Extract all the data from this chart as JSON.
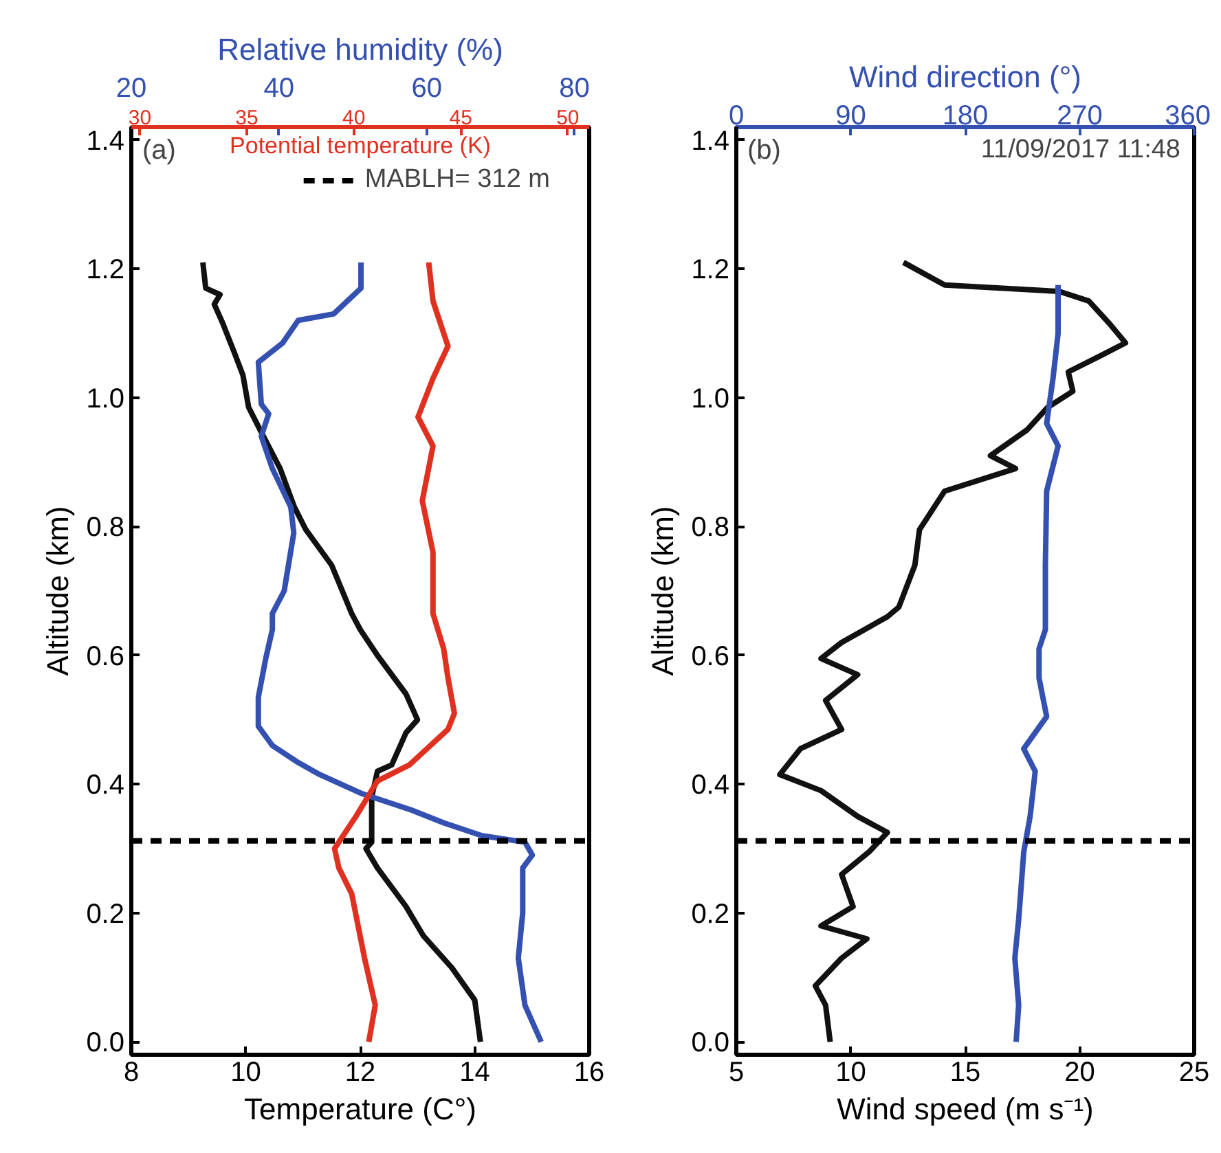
{
  "chart_data": [
    {
      "type": "line",
      "xlabel": "Temperature (C°)",
      "ylabel": "Altitude (km)",
      "x2label": "Relative humidity (%)",
      "xlim": [
        8,
        16
      ],
      "xticks": [
        8,
        10,
        12,
        14,
        16
      ],
      "x2lim": [
        20,
        82
      ],
      "x2ticks": [
        20,
        40,
        60,
        80
      ],
      "ylim": [
        -0.02,
        1.42
      ],
      "yticks": [
        {
          "value": 0,
          "label": "0.0"
        },
        {
          "value": 0.2,
          "label": "0.2"
        },
        {
          "value": 0.4,
          "label": "0.4"
        },
        {
          "value": 0.6,
          "label": "0.6"
        },
        {
          "value": 0.8,
          "label": "0.8"
        },
        {
          "value": 1.0,
          "label": "1.0"
        },
        {
          "value": 1.2,
          "label": "1.2"
        },
        {
          "value": 1.4,
          "label": "1.4"
        }
      ],
      "grid": false,
      "legend": "top right",
      "line_style": "solid",
      "annotations": [
        "(a)"
      ],
      "ref_lines": [
        {
          "axis": "y",
          "value": 0.312,
          "label": "MABLH= 312 m",
          "color": "#000000",
          "line_style": "dashed"
        }
      ],
      "series": [
        {
          "color": "#111111",
          "x": [
            14.1,
            14.0,
            13.6,
            13.1,
            12.8,
            12.3,
            12.1,
            12.2,
            12.2,
            12.3,
            12.55,
            12.8,
            13.0,
            12.8,
            12.3,
            12.0,
            11.85,
            11.5,
            11.05,
            10.85,
            10.6,
            10.25,
            10.05,
            9.95,
            9.8,
            9.6,
            9.45,
            9.55,
            9.3,
            9.25
          ],
          "values": [
            0.0,
            0.065,
            0.115,
            0.165,
            0.21,
            0.27,
            0.3,
            0.31,
            0.38,
            0.42,
            0.43,
            0.48,
            0.5,
            0.54,
            0.6,
            0.64,
            0.665,
            0.74,
            0.795,
            0.83,
            0.89,
            0.95,
            0.985,
            1.035,
            1.07,
            1.115,
            1.145,
            1.16,
            1.17,
            1.21
          ]
        },
        {
          "color": "#3450b0",
          "axis": "x2",
          "x": [
            75.5,
            73.3,
            72.4,
            73.0,
            73.0,
            74.3,
            73.3,
            67.5,
            62.3,
            57.9,
            51.3,
            45.5,
            42.4,
            39.1,
            37.2,
            37.2,
            38.2,
            39.1,
            39.1,
            40.7,
            42.0,
            41.6,
            39.1,
            37.6,
            38.6,
            37.6,
            37.2,
            40.5,
            42.6,
            47.4,
            51.1,
            51.1
          ],
          "values": [
            0.0,
            0.057,
            0.13,
            0.2,
            0.27,
            0.29,
            0.31,
            0.32,
            0.34,
            0.36,
            0.385,
            0.415,
            0.435,
            0.46,
            0.49,
            0.535,
            0.595,
            0.64,
            0.665,
            0.7,
            0.79,
            0.83,
            0.89,
            0.94,
            0.975,
            0.99,
            1.055,
            1.085,
            1.12,
            1.13,
            1.17,
            1.21
          ]
        }
      ]
    },
    {
      "type": "line",
      "xlabel": "Potential temperature (K)",
      "xlim": [
        29.6,
        51
      ],
      "xticks": [
        30,
        35,
        40,
        45,
        50
      ],
      "ylim": [
        -0.02,
        1.42
      ],
      "tick_labels": "x",
      "grid": false,
      "line_style": "solid",
      "series": [
        {
          "color": "#e03020",
          "x": [
            40.7,
            41.0,
            40.5,
            39.9,
            39.3,
            39.1,
            39.5,
            40.1,
            41.1,
            42.6,
            44.4,
            44.7,
            44.4,
            44.2,
            43.7,
            43.7,
            43.2,
            43.7,
            43.0,
            43.7,
            44.4,
            43.7,
            43.5
          ],
          "values": [
            0.0,
            0.057,
            0.13,
            0.23,
            0.27,
            0.3,
            0.32,
            0.35,
            0.405,
            0.43,
            0.485,
            0.51,
            0.565,
            0.61,
            0.665,
            0.76,
            0.84,
            0.925,
            0.97,
            1.03,
            1.08,
            1.15,
            1.21
          ]
        }
      ]
    },
    {
      "type": "line",
      "xlabel": "Wind speed (m s⁻¹)",
      "ylabel": "Altitude (km)",
      "x2label": "Wind direction (°)",
      "xlim": [
        5,
        25
      ],
      "xticks": [
        5,
        10,
        15,
        20,
        25
      ],
      "x2lim": [
        0,
        360
      ],
      "x2ticks": [
        0,
        90,
        180,
        270,
        360
      ],
      "ylim": [
        -0.02,
        1.42
      ],
      "yticks": [
        {
          "value": 0,
          "label": "0.0"
        },
        {
          "value": 0.2,
          "label": "0.2"
        },
        {
          "value": 0.4,
          "label": "0.4"
        },
        {
          "value": 0.6,
          "label": "0.6"
        },
        {
          "value": 0.8,
          "label": "0.8"
        },
        {
          "value": 1.0,
          "label": "1.0"
        },
        {
          "value": 1.2,
          "label": "1.2"
        },
        {
          "value": 1.4,
          "label": "1.4"
        }
      ],
      "grid": false,
      "line_style": "solid",
      "annotations": [
        "(b)",
        "11/09/2017 11:48"
      ],
      "ref_lines": [
        {
          "axis": "y",
          "value": 0.312,
          "color": "#000000",
          "line_style": "dashed"
        }
      ],
      "series": [
        {
          "color": "#111111",
          "x": [
            9.1,
            8.9,
            8.45,
            9.6,
            10.7,
            8.7,
            10.1,
            9.6,
            10.8,
            11.6,
            10.3,
            8.7,
            6.9,
            7.8,
            9.6,
            8.9,
            10.3,
            8.7,
            9.6,
            11.6,
            12.1,
            12.8,
            13.0,
            14.1,
            17.2,
            16.1,
            17.7,
            18.6,
            19.7,
            19.5,
            20.9,
            22.0,
            21.3,
            20.4,
            19.1,
            14.1,
            12.3
          ],
          "values": [
            0.0,
            0.057,
            0.087,
            0.13,
            0.16,
            0.18,
            0.21,
            0.26,
            0.295,
            0.325,
            0.35,
            0.39,
            0.415,
            0.455,
            0.485,
            0.53,
            0.57,
            0.595,
            0.62,
            0.66,
            0.675,
            0.74,
            0.795,
            0.855,
            0.89,
            0.91,
            0.95,
            0.985,
            1.01,
            1.04,
            1.065,
            1.085,
            1.115,
            1.15,
            1.165,
            1.175,
            1.21
          ]
        },
        {
          "color": "#3450b0",
          "axis": "x2",
          "x": [
            220,
            222,
            219,
            222,
            226,
            231,
            235,
            226,
            244,
            238,
            238,
            243,
            243,
            244,
            253,
            244,
            249,
            253,
            253
          ],
          "values": [
            0.0,
            0.057,
            0.13,
            0.19,
            0.295,
            0.35,
            0.42,
            0.455,
            0.505,
            0.565,
            0.61,
            0.64,
            0.74,
            0.855,
            0.925,
            0.96,
            1.03,
            1.1,
            1.175
          ]
        }
      ]
    }
  ]
}
